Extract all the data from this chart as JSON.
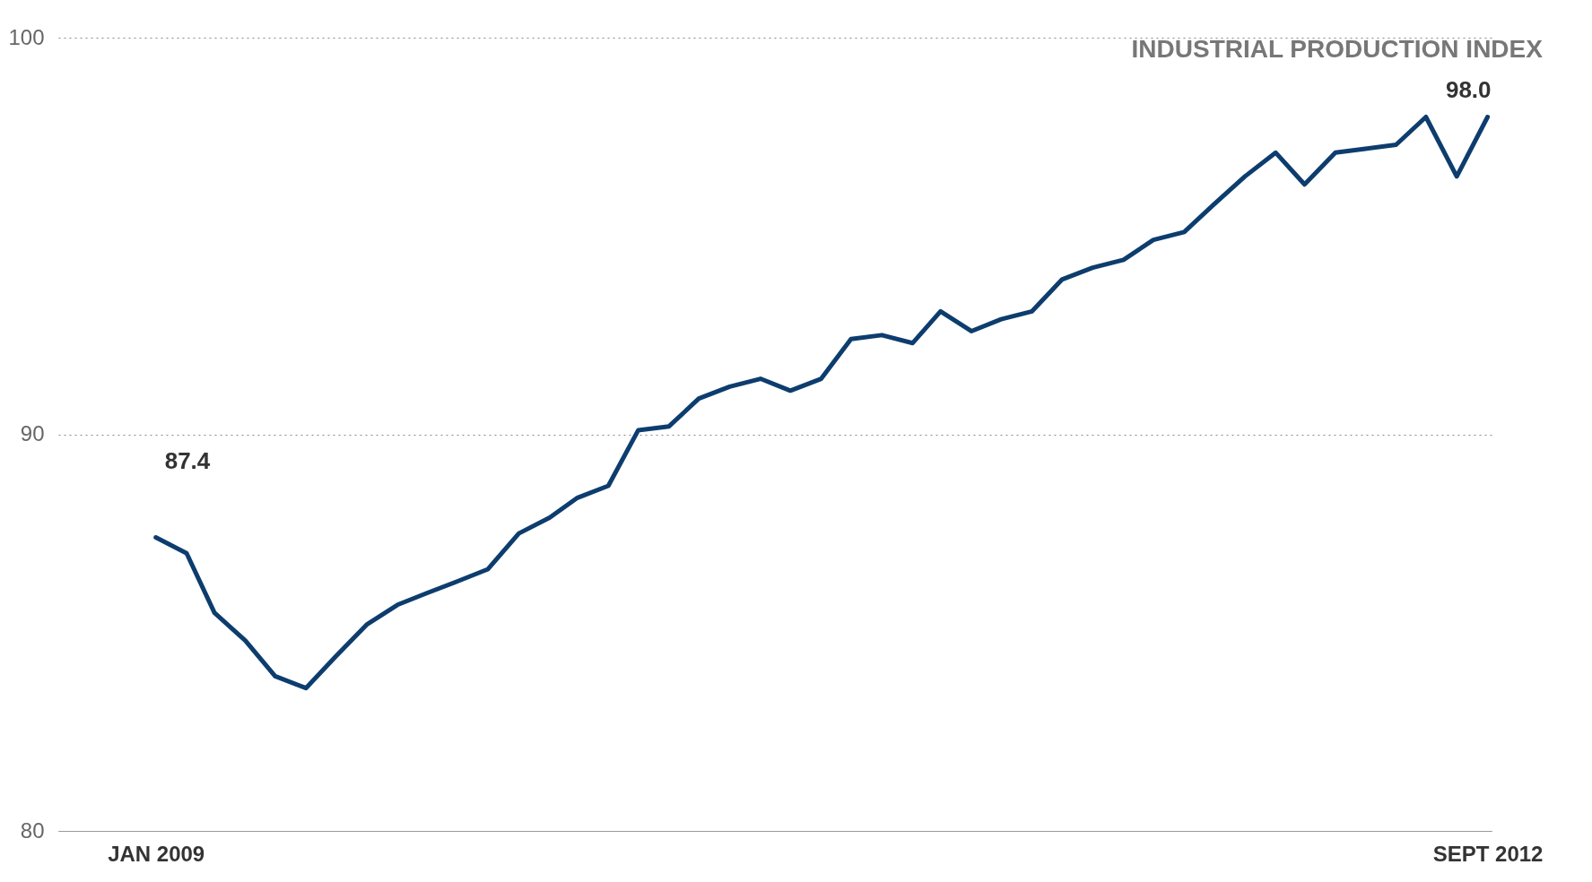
{
  "chart_data": {
    "type": "line",
    "title": "INDUSTRIAL PRODUCTION INDEX",
    "x": [
      "2009-01",
      "2009-02",
      "2009-03",
      "2009-04",
      "2009-05",
      "2009-06",
      "2009-07",
      "2009-08",
      "2009-09",
      "2009-10",
      "2009-11",
      "2009-12",
      "2010-01",
      "2010-02",
      "2010-03",
      "2010-04",
      "2010-05",
      "2010-06",
      "2010-07",
      "2010-08",
      "2010-09",
      "2010-10",
      "2010-11",
      "2010-12",
      "2011-01",
      "2011-02",
      "2011-03",
      "2011-04",
      "2011-05",
      "2011-06",
      "2011-07",
      "2011-08",
      "2011-09",
      "2011-10",
      "2011-11",
      "2011-12",
      "2012-01",
      "2012-02",
      "2012-03",
      "2012-04",
      "2012-05",
      "2012-06",
      "2012-07",
      "2012-08",
      "2012-09"
    ],
    "series": [
      {
        "color": "#0d3d6e",
        "values": [
          87.4,
          87.0,
          85.5,
          84.8,
          83.9,
          83.6,
          84.4,
          85.2,
          85.7,
          86.0,
          86.3,
          86.6,
          87.5,
          87.9,
          88.4,
          88.7,
          90.1,
          90.2,
          90.9,
          91.2,
          91.4,
          91.1,
          91.4,
          92.4,
          92.5,
          92.3,
          93.1,
          92.6,
          92.9,
          93.1,
          93.9,
          94.2,
          94.4,
          94.9,
          95.1,
          95.8,
          96.5,
          97.1,
          96.3,
          97.1,
          97.2,
          97.3,
          98.0,
          96.5,
          98.0
        ],
        "value_labels": [
          "87.4",
          null,
          null,
          null,
          null,
          null,
          null,
          null,
          null,
          null,
          null,
          null,
          null,
          null,
          null,
          null,
          null,
          null,
          null,
          null,
          null,
          null,
          null,
          null,
          null,
          null,
          null,
          null,
          null,
          null,
          null,
          null,
          null,
          null,
          null,
          null,
          null,
          null,
          null,
          null,
          null,
          null,
          null,
          null,
          "98.0"
        ]
      }
    ],
    "xlim": [
      "2008-09-25",
      "2012-09-05"
    ],
    "xticks": [
      {
        "value": "2009-01",
        "label": "JAN 2009"
      },
      {
        "value": "2012-09",
        "label": "SEPT 2012"
      }
    ],
    "ylim": [
      80,
      100
    ],
    "yticks": [
      80,
      90,
      100
    ],
    "grid": "y",
    "marker": "none",
    "line_style": "solid"
  }
}
